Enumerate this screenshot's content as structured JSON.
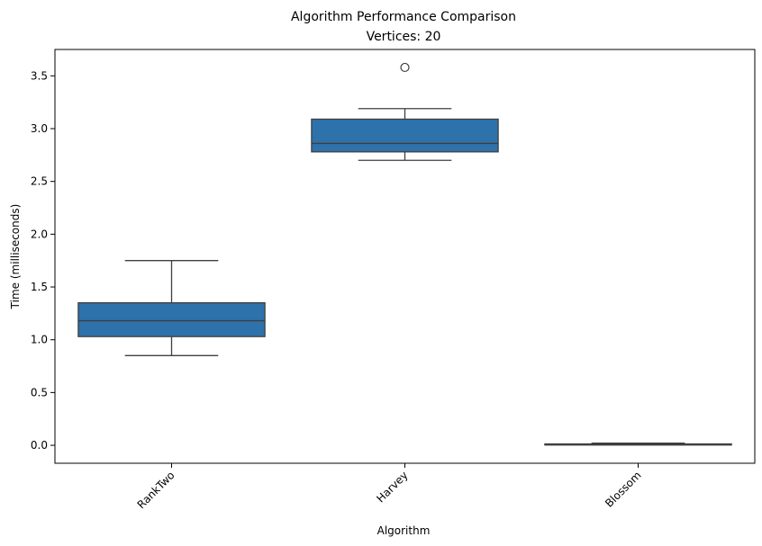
{
  "chart_data": {
    "type": "box",
    "title": "Algorithm Performance Comparison",
    "subtitle": "Vertices: 20",
    "xlabel": "Algorithm",
    "ylabel": "Time (milliseconds)",
    "categories": [
      "RankTwo",
      "Harvey",
      "Blossom"
    ],
    "ylim": [
      -0.17,
      3.75
    ],
    "yticks": [
      0.0,
      0.5,
      1.0,
      1.5,
      2.0,
      2.5,
      3.0,
      3.5
    ],
    "ytick_labels": [
      "0.0",
      "0.5",
      "1.0",
      "1.5",
      "2.0",
      "2.5",
      "3.0",
      "3.5"
    ],
    "xtick_rotation": -45,
    "grid": false,
    "box_color": "#2e72ab",
    "line_color": "#3f3f3f",
    "boxes": [
      {
        "category": "RankTwo",
        "whisker_low": 0.85,
        "q1": 1.03,
        "median": 1.18,
        "q3": 1.35,
        "whisker_high": 1.75,
        "outliers": []
      },
      {
        "category": "Harvey",
        "whisker_low": 2.7,
        "q1": 2.78,
        "median": 2.86,
        "q3": 3.09,
        "whisker_high": 3.19,
        "outliers": [
          3.58
        ]
      },
      {
        "category": "Blossom",
        "whisker_low": 0.005,
        "q1": 0.008,
        "median": 0.01,
        "q3": 0.013,
        "whisker_high": 0.02,
        "outliers": []
      }
    ]
  }
}
